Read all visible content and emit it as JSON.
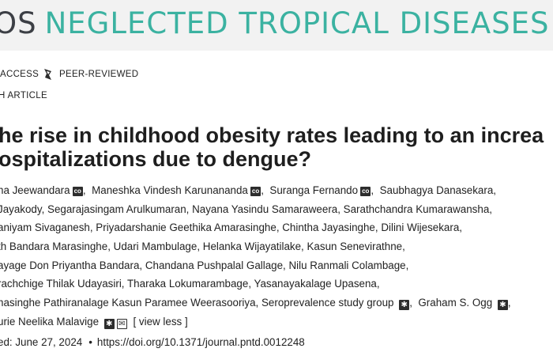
{
  "header": {
    "journal_left": "OS",
    "journal_name": "NEGLECTED TROPICAL DISEASES"
  },
  "badges": {
    "access": "ACCESS",
    "peer_reviewed": "PEER-REVIEWED"
  },
  "article_type": "H ARTICLE",
  "title": {
    "line1": "he rise in childhood obesity rates leading to an increa",
    "line2": "ospitalizations due to dengue?"
  },
  "authors": {
    "line1": [
      "na Jeewandara",
      "Maneshka Vindesh Karunananda",
      "Suranga Fernando",
      "Saubhagya Danasekara,"
    ],
    "line2": "Jayakody,  Segarajasingam Arulkumaran,  Nayana Yasindu Samaraweera,  Sarathchandra Kumarawansha,",
    "line3": "aniyam Sivaganesh,  Priyadarshanie Geethika Amarasinghe,  Chintha Jayasinghe,  Dilini Wijesekara,",
    "line4": "th Bandara Marasinghe,  Udari Mambulage,  Helanka Wijayatilake,  Kasun Senevirathne,",
    "line5": "ayage Don Priyantha Bandara,  Chandana Pushpalal Gallage,  Nilu Ranmali Colambage,",
    "line6": "rachchige Thilak Udayasiri,  Tharaka Lokumarambage,  Yasanayakalage Upasena,",
    "line7a": "nasinghe Pathiranalage Kasun Paramee Weerasooriya,  Seroprevalence study group",
    "line7b": "Graham S. Ogg",
    "line8": "urie Neelika Malavige",
    "orcid_label": "co",
    "view_less": "[ view less ]"
  },
  "publication": {
    "date": "ed: June 27, 2024",
    "doi": "https://doi.org/10.1371/journal.pntd.0012248"
  },
  "colors": {
    "accent": "#3bb2a1",
    "dark": "#3c3f45"
  }
}
